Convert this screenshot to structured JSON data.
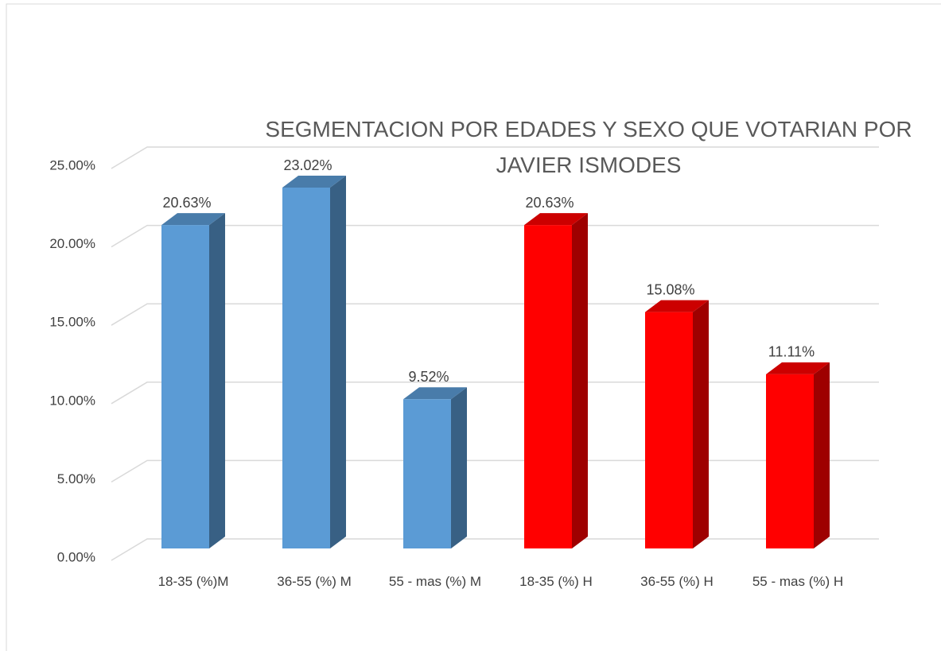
{
  "chart_data": {
    "type": "bar3d",
    "title": "SEGMENTACION POR EDADES Y SEXO QUE VOTARIAN POR JAVIER ISMODES",
    "categories": [
      "18-35 (%)M",
      "36-55 (%) M",
      "55 - mas (%) M",
      "18-35 (%) H",
      "36-55 (%) H",
      "55 - mas (%) H"
    ],
    "values": [
      20.63,
      23.02,
      9.52,
      20.63,
      15.08,
      11.11
    ],
    "value_labels": [
      "20.63%",
      "23.02%",
      "9.52%",
      "20.63%",
      "15.08%",
      "11.11%"
    ],
    "colors": [
      "#5b9bd5",
      "#5b9bd5",
      "#5b9bd5",
      "#ff0000",
      "#ff0000",
      "#ff0000"
    ],
    "ylim": [
      0,
      25
    ],
    "yticks": [
      {
        "value": 0,
        "label": "0.00%"
      },
      {
        "value": 5,
        "label": "5.00%"
      },
      {
        "value": 10,
        "label": "10.00%"
      },
      {
        "value": 15,
        "label": "15.00%"
      },
      {
        "value": 20,
        "label": "20.00%"
      },
      {
        "value": 25,
        "label": "25.00%"
      }
    ],
    "grid": true
  }
}
